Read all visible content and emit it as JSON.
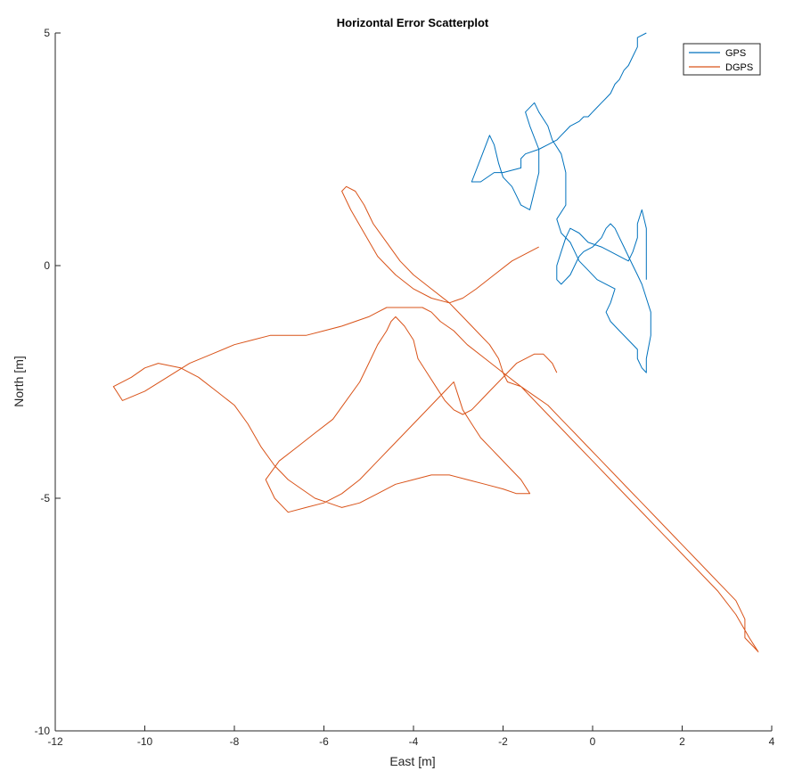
{
  "chart_data": {
    "type": "line",
    "title": "Horizontal Error Scatterplot",
    "xlabel": "East [m]",
    "ylabel": "North [m]",
    "xlim": [
      -12,
      4
    ],
    "ylim": [
      -10,
      5
    ],
    "xticks": [
      "-12",
      "-10",
      "-8",
      "-6",
      "-4",
      "-2",
      "0",
      "2",
      "4"
    ],
    "yticks": [
      "-10",
      "-5",
      "0",
      "5"
    ],
    "grid": false,
    "legend_position": "top-right",
    "series": [
      {
        "name": "GPS",
        "color": "#0072BD",
        "x": [
          1.2,
          1.0,
          1.0,
          0.9,
          0.8,
          0.7,
          0.6,
          0.5,
          0.4,
          0.3,
          0.2,
          0.1,
          0.0,
          -0.1,
          -0.2,
          -0.3,
          -0.5,
          -0.6,
          -0.7,
          -0.8,
          -1.0,
          -1.2,
          -1.5,
          -1.6,
          -1.6,
          -2.0,
          -2.2,
          -2.5,
          -2.7,
          -2.5,
          -2.3,
          -2.2,
          -2.1,
          -2.0,
          -1.8,
          -1.7,
          -1.6,
          -1.4,
          -1.3,
          -1.2,
          -1.2,
          -1.4,
          -1.5,
          -1.3,
          -1.2,
          -1.0,
          -0.9,
          -0.7,
          -0.6,
          -0.6,
          -0.6,
          -0.8,
          -0.7,
          -0.5,
          -0.4,
          -0.3,
          -0.1,
          0.1,
          0.3,
          0.5,
          0.4,
          0.3,
          0.4,
          0.6,
          0.8,
          1.0,
          1.0,
          1.1,
          1.2,
          1.2,
          1.3,
          1.3,
          1.2,
          1.1,
          1.0,
          0.9,
          0.8,
          0.7,
          0.6,
          0.5,
          0.4,
          0.3,
          0.2,
          0.1,
          0.0,
          -0.2,
          -0.3,
          -0.4,
          -0.5,
          -0.7,
          -0.8,
          -0.8,
          -0.7,
          -0.6,
          -0.5,
          -0.3,
          -0.1,
          0.2,
          0.4,
          0.6,
          0.8,
          0.9,
          1.0,
          1.0,
          1.1,
          1.2,
          1.2
        ],
        "y": [
          5.0,
          4.9,
          4.7,
          4.5,
          4.3,
          4.2,
          4.0,
          3.9,
          3.7,
          3.6,
          3.5,
          3.4,
          3.3,
          3.2,
          3.2,
          3.1,
          3.0,
          2.9,
          2.8,
          2.7,
          2.6,
          2.5,
          2.4,
          2.3,
          2.1,
          2.0,
          2.0,
          1.8,
          1.8,
          2.3,
          2.8,
          2.6,
          2.2,
          1.9,
          1.7,
          1.5,
          1.3,
          1.2,
          1.6,
          2.0,
          2.5,
          3.0,
          3.3,
          3.5,
          3.3,
          3.0,
          2.7,
          2.4,
          2.0,
          1.6,
          1.3,
          1.0,
          0.7,
          0.5,
          0.3,
          0.1,
          -0.1,
          -0.3,
          -0.4,
          -0.5,
          -0.8,
          -1.0,
          -1.2,
          -1.4,
          -1.6,
          -1.8,
          -2.0,
          -2.2,
          -2.3,
          -2.0,
          -1.5,
          -1.0,
          -0.7,
          -0.4,
          -0.2,
          0.0,
          0.2,
          0.4,
          0.6,
          0.8,
          0.9,
          0.8,
          0.6,
          0.5,
          0.4,
          0.3,
          0.2,
          0.0,
          -0.2,
          -0.4,
          -0.3,
          0.0,
          0.3,
          0.6,
          0.8,
          0.7,
          0.5,
          0.4,
          0.3,
          0.2,
          0.1,
          0.3,
          0.6,
          0.9,
          1.2,
          0.8,
          -0.3
        ]
      },
      {
        "name": "DGPS",
        "color": "#D95319",
        "x": [
          -1.2,
          -1.4,
          -1.8,
          -2.2,
          -2.6,
          -2.9,
          -3.2,
          -3.6,
          -4.0,
          -4.4,
          -4.8,
          -5.1,
          -5.4,
          -5.6,
          -5.5,
          -5.3,
          -5.1,
          -4.9,
          -4.6,
          -4.3,
          -4.0,
          -3.6,
          -3.2,
          -2.9,
          -2.6,
          -2.3,
          -2.1,
          -2.0,
          -1.9,
          -1.6,
          -1.3,
          -1.0,
          -0.7,
          -0.4,
          -0.1,
          0.2,
          0.5,
          0.8,
          1.1,
          1.4,
          1.7,
          2.0,
          2.3,
          2.6,
          2.9,
          3.2,
          3.4,
          3.4,
          3.6,
          3.7,
          3.5,
          3.2,
          2.8,
          2.4,
          2.0,
          1.6,
          1.2,
          0.8,
          0.4,
          0.0,
          -0.4,
          -0.8,
          -1.2,
          -1.6,
          -2.0,
          -2.4,
          -2.8,
          -3.1,
          -3.4,
          -3.6,
          -3.8,
          -4.0,
          -4.3,
          -4.6,
          -4.8,
          -5.0,
          -5.3,
          -5.6,
          -6.0,
          -6.4,
          -6.8,
          -7.2,
          -7.6,
          -8.0,
          -8.5,
          -9.0,
          -9.5,
          -10.0,
          -10.5,
          -10.7,
          -10.3,
          -10.0,
          -9.7,
          -9.2,
          -8.8,
          -8.4,
          -8.0,
          -7.7,
          -7.4,
          -7.1,
          -6.8,
          -6.5,
          -6.2,
          -5.9,
          -5.6,
          -5.2,
          -4.8,
          -4.4,
          -4.0,
          -3.6,
          -3.2,
          -2.8,
          -2.4,
          -2.0,
          -1.7,
          -1.4,
          -1.6,
          -1.9,
          -2.2,
          -2.5,
          -2.7,
          -2.9,
          -3.0,
          -3.1,
          -3.3,
          -3.6,
          -4.0,
          -4.4,
          -4.8,
          -5.2,
          -5.6,
          -6.0,
          -6.4,
          -6.8,
          -7.1,
          -7.3,
          -7.0,
          -6.6,
          -6.2,
          -5.8,
          -5.5,
          -5.2,
          -5.0,
          -4.8,
          -4.6,
          -4.5,
          -4.4,
          -4.2,
          -4.0,
          -3.9,
          -3.7,
          -3.5,
          -3.3,
          -3.1,
          -2.9,
          -2.7,
          -2.5,
          -2.3,
          -2.1,
          -1.9,
          -1.7,
          -1.5,
          -1.3,
          -1.1,
          -0.9,
          -0.8
        ],
        "y": [
          0.4,
          0.3,
          0.1,
          -0.2,
          -0.5,
          -0.7,
          -0.8,
          -0.7,
          -0.5,
          -0.2,
          0.2,
          0.7,
          1.2,
          1.6,
          1.7,
          1.6,
          1.3,
          0.9,
          0.5,
          0.1,
          -0.2,
          -0.5,
          -0.8,
          -1.1,
          -1.4,
          -1.7,
          -2.0,
          -2.3,
          -2.5,
          -2.6,
          -2.8,
          -3.0,
          -3.3,
          -3.6,
          -3.9,
          -4.2,
          -4.5,
          -4.8,
          -5.1,
          -5.4,
          -5.7,
          -6.0,
          -6.3,
          -6.6,
          -6.9,
          -7.2,
          -7.6,
          -8.0,
          -8.2,
          -8.3,
          -8.0,
          -7.5,
          -7.0,
          -6.6,
          -6.2,
          -5.8,
          -5.4,
          -5.0,
          -4.6,
          -4.2,
          -3.8,
          -3.4,
          -3.0,
          -2.6,
          -2.3,
          -2.0,
          -1.7,
          -1.4,
          -1.2,
          -1.0,
          -0.9,
          -0.9,
          -0.9,
          -0.9,
          -1.0,
          -1.1,
          -1.2,
          -1.3,
          -1.4,
          -1.5,
          -1.5,
          -1.5,
          -1.6,
          -1.7,
          -1.9,
          -2.1,
          -2.4,
          -2.7,
          -2.9,
          -2.6,
          -2.4,
          -2.2,
          -2.1,
          -2.2,
          -2.4,
          -2.7,
          -3.0,
          -3.4,
          -3.9,
          -4.3,
          -4.6,
          -4.8,
          -5.0,
          -5.1,
          -5.2,
          -5.1,
          -4.9,
          -4.7,
          -4.6,
          -4.5,
          -4.5,
          -4.6,
          -4.7,
          -4.8,
          -4.9,
          -4.9,
          -4.6,
          -4.3,
          -4.0,
          -3.7,
          -3.4,
          -3.1,
          -2.8,
          -2.5,
          -2.7,
          -3.0,
          -3.4,
          -3.8,
          -4.2,
          -4.6,
          -4.9,
          -5.1,
          -5.2,
          -5.3,
          -5.0,
          -4.6,
          -4.2,
          -3.9,
          -3.6,
          -3.3,
          -2.9,
          -2.5,
          -2.1,
          -1.7,
          -1.4,
          -1.2,
          -1.1,
          -1.3,
          -1.6,
          -2.0,
          -2.3,
          -2.6,
          -2.9,
          -3.1,
          -3.2,
          -3.1,
          -2.9,
          -2.7,
          -2.5,
          -2.3,
          -2.1,
          -2.0,
          -1.9,
          -1.9,
          -2.1,
          -2.3
        ]
      }
    ]
  }
}
